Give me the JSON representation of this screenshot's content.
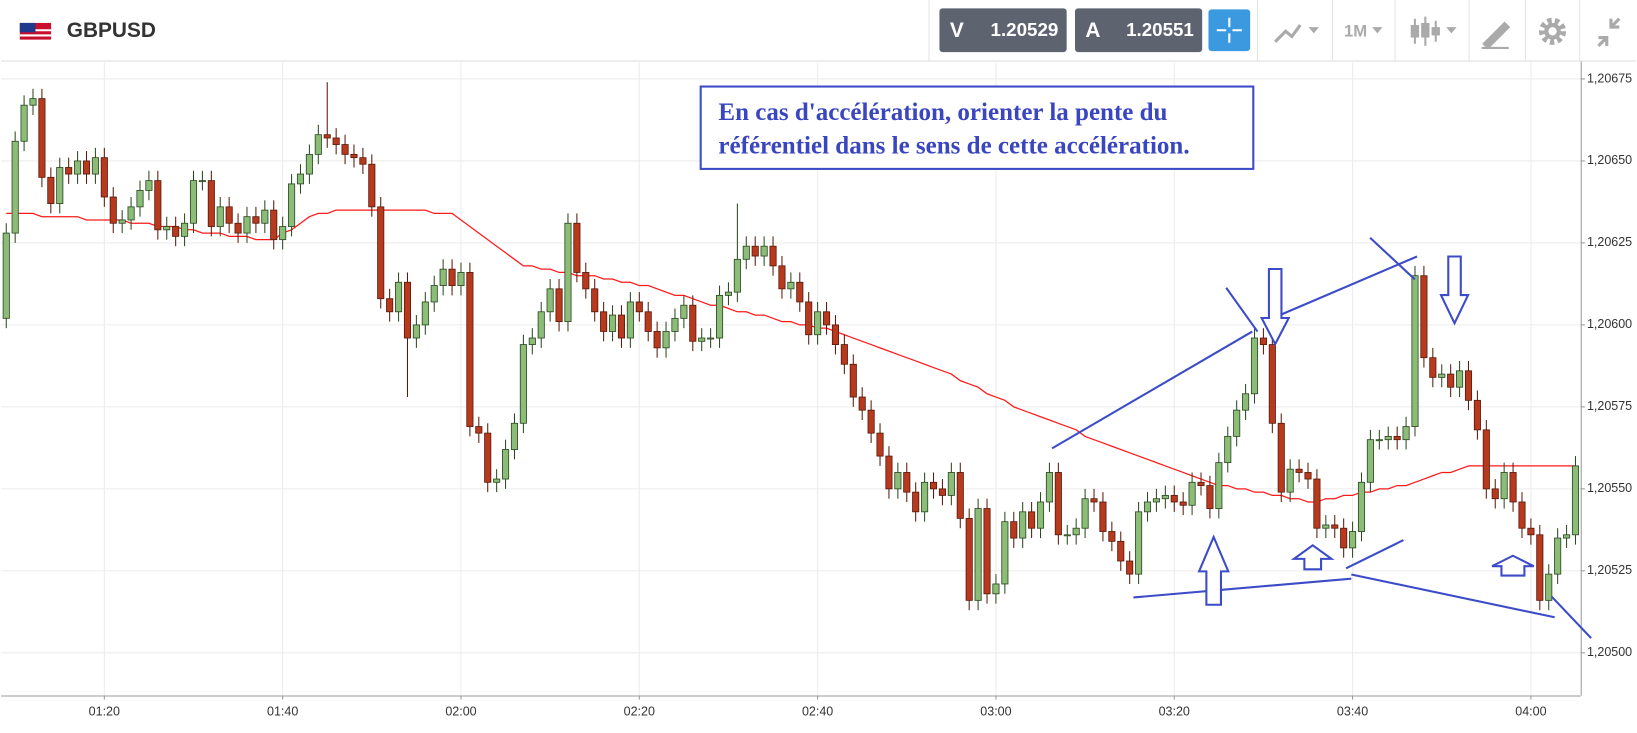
{
  "header": {
    "symbol": "GBPUSD",
    "sell_label": "V",
    "sell_price": "1.20529",
    "buy_label": "A",
    "buy_price": "1.20551",
    "timeframe": "1M"
  },
  "chart_data": {
    "type": "candlestick",
    "annotation": [
      "En cas d'accélération, orienter la pente du",
      "référentiel dans le sens de cette accélération."
    ],
    "categories": [
      null,
      null,
      null,
      null,
      null,
      null,
      null,
      null,
      null,
      null,
      null,
      "01:20",
      null,
      null,
      null,
      null,
      null,
      null,
      null,
      null,
      null,
      null,
      null,
      null,
      null,
      null,
      null,
      null,
      null,
      null,
      null,
      "01:40",
      null,
      null,
      null,
      null,
      null,
      null,
      null,
      null,
      null,
      null,
      null,
      null,
      null,
      null,
      null,
      null,
      null,
      null,
      null,
      "02:00",
      null,
      null,
      null,
      null,
      null,
      null,
      null,
      null,
      null,
      null,
      null,
      null,
      null,
      null,
      null,
      null,
      null,
      null,
      null,
      "02:20",
      null,
      null,
      null,
      null,
      null,
      null,
      null,
      null,
      null,
      null,
      null,
      null,
      null,
      null,
      null,
      null,
      null,
      null,
      null,
      "02:40",
      null,
      null,
      null,
      null,
      null,
      null,
      null,
      null,
      null,
      null,
      null,
      null,
      null,
      null,
      null,
      null,
      null,
      null,
      null,
      "03:00",
      null,
      null,
      null,
      null,
      null,
      null,
      null,
      null,
      null,
      null,
      null,
      null,
      null,
      null,
      null,
      null,
      null,
      null,
      null,
      "03:20",
      null,
      null,
      null,
      null,
      null,
      null,
      null,
      null,
      null,
      null,
      null,
      null,
      null,
      null,
      null,
      null,
      null,
      null,
      null,
      "03:40",
      null,
      null,
      null,
      null,
      null,
      null,
      null,
      null,
      null,
      null,
      null,
      null,
      null,
      null,
      null,
      null,
      null,
      null,
      null,
      "04:00",
      null,
      null,
      null,
      null,
      null
    ],
    "open": [
      1.20602,
      1.20628,
      1.20656,
      1.20667,
      1.20669,
      1.20645,
      1.20637,
      1.20648,
      1.20646,
      1.2065,
      1.20646,
      1.20651,
      1.20639,
      1.20631,
      1.20632,
      1.20636,
      1.20641,
      1.20644,
      1.20629,
      1.2063,
      1.20627,
      1.20631,
      1.20644,
      1.20644,
      1.2063,
      1.20636,
      1.20631,
      1.20628,
      1.20633,
      1.20631,
      1.20635,
      1.20626,
      1.2063,
      1.20643,
      1.20646,
      1.20652,
      1.20658,
      1.20657,
      1.20655,
      1.20652,
      1.20651,
      1.20649,
      1.20636,
      1.20608,
      1.20604,
      1.20613,
      1.20596,
      1.206,
      1.20607,
      1.20612,
      1.20617,
      1.20612,
      1.20616,
      1.20569,
      1.20567,
      1.20552,
      1.20553,
      1.20562,
      1.2057,
      1.20594,
      1.20596,
      1.20604,
      1.20611,
      1.20601,
      1.20631,
      1.20616,
      1.20611,
      1.20604,
      1.20598,
      1.20603,
      1.20596,
      1.20607,
      1.20604,
      1.20598,
      1.20593,
      1.20598,
      1.20602,
      1.20606,
      1.20595,
      1.20596,
      1.20596,
      1.20609,
      1.2061,
      1.2062,
      1.20624,
      1.20621,
      1.20624,
      1.20618,
      1.20611,
      1.20613,
      1.20607,
      1.20597,
      1.20604,
      1.206,
      1.20594,
      1.20588,
      1.20578,
      1.20574,
      1.20567,
      1.2056,
      1.2055,
      1.20555,
      1.20549,
      1.20543,
      1.20552,
      1.2055,
      1.20548,
      1.20555,
      1.20541,
      1.20516,
      1.20544,
      1.20518,
      1.20521,
      1.2054,
      1.20535,
      1.20543,
      1.20538,
      1.20546,
      1.20555,
      1.20536,
      1.20536,
      1.20538,
      1.20547,
      1.20546,
      1.20537,
      1.20534,
      1.20528,
      1.20524,
      1.20543,
      1.20546,
      1.20547,
      1.20548,
      1.20546,
      1.20545,
      1.20552,
      1.20551,
      1.20544,
      1.20558,
      1.20566,
      1.20574,
      1.20579,
      1.20596,
      1.20594,
      1.2057,
      1.20549,
      1.20556,
      1.20555,
      1.20553,
      1.20538,
      1.20539,
      1.20538,
      1.20532,
      1.20537,
      1.20552,
      1.20565,
      1.20565,
      1.20566,
      1.20565,
      1.20569,
      1.20615,
      1.2059,
      1.20584,
      1.20585,
      1.20581,
      1.20586,
      1.20577,
      1.20568,
      1.2055,
      1.20547,
      1.20555,
      1.20546,
      1.20538,
      1.20536,
      1.20516,
      1.20524,
      1.20535,
      1.20536
    ],
    "high": [
      1.20631,
      1.20659,
      1.2067,
      1.20672,
      1.20672,
      1.20648,
      1.20651,
      1.20651,
      1.20653,
      1.20653,
      1.20654,
      1.20654,
      1.20642,
      1.20635,
      1.20639,
      1.20644,
      1.20647,
      1.20647,
      1.20633,
      1.20633,
      1.20634,
      1.20647,
      1.20647,
      1.20647,
      1.20639,
      1.20639,
      1.20634,
      1.20636,
      1.20636,
      1.20638,
      1.20638,
      1.20633,
      1.20646,
      1.20649,
      1.20655,
      1.20661,
      1.20674,
      1.2066,
      1.20658,
      1.20655,
      1.20654,
      1.20652,
      1.20639,
      1.20611,
      1.20616,
      1.20616,
      1.20603,
      1.2061,
      1.20615,
      1.2062,
      1.2062,
      1.20619,
      1.20619,
      1.20572,
      1.2057,
      1.20556,
      1.20565,
      1.20573,
      1.20597,
      1.20599,
      1.20607,
      1.20614,
      1.20614,
      1.20634,
      1.20634,
      1.20619,
      1.20614,
      1.20607,
      1.20606,
      1.20606,
      1.2061,
      1.2061,
      1.20607,
      1.20601,
      1.20601,
      1.20605,
      1.20609,
      1.20609,
      1.20599,
      1.20599,
      1.20612,
      1.20613,
      1.20637,
      1.20627,
      1.20627,
      1.20627,
      1.20627,
      1.20621,
      1.20616,
      1.20616,
      1.2061,
      1.20607,
      1.20607,
      1.20603,
      1.20597,
      1.20591,
      1.20581,
      1.20577,
      1.2057,
      1.20563,
      1.20558,
      1.20558,
      1.20552,
      1.20555,
      1.20555,
      1.20553,
      1.20558,
      1.20558,
      1.20544,
      1.20547,
      1.20547,
      1.20524,
      1.20543,
      1.20543,
      1.20546,
      1.20546,
      1.20549,
      1.20558,
      1.20558,
      1.20539,
      1.20541,
      1.2055,
      1.2055,
      1.20549,
      1.2054,
      1.20537,
      1.20531,
      1.20546,
      1.20549,
      1.2055,
      1.20551,
      1.20551,
      1.20549,
      1.20555,
      1.20555,
      1.20554,
      1.20561,
      1.20569,
      1.20577,
      1.20582,
      1.20599,
      1.20599,
      1.20597,
      1.20573,
      1.20559,
      1.20559,
      1.20558,
      1.20556,
      1.20542,
      1.20542,
      1.20541,
      1.2054,
      1.20555,
      1.20568,
      1.20568,
      1.20569,
      1.20569,
      1.20572,
      1.20618,
      1.20618,
      1.20593,
      1.20588,
      1.20588,
      1.20589,
      1.20589,
      1.2058,
      1.20571,
      1.20553,
      1.20558,
      1.20558,
      1.20549,
      1.20541,
      1.20539,
      1.20527,
      1.20538,
      1.20539,
      1.2056
    ],
    "low": [
      1.20599,
      1.20625,
      1.20653,
      1.20664,
      1.20642,
      1.20634,
      1.20634,
      1.20643,
      1.20643,
      1.20643,
      1.20643,
      1.20636,
      1.20628,
      1.20628,
      1.20629,
      1.20633,
      1.20638,
      1.20626,
      1.20626,
      1.20624,
      1.20624,
      1.20628,
      1.20641,
      1.20627,
      1.20627,
      1.20628,
      1.20625,
      1.20625,
      1.20628,
      1.20628,
      1.20623,
      1.20623,
      1.20627,
      1.2064,
      1.20643,
      1.20649,
      1.20654,
      1.20652,
      1.20649,
      1.20648,
      1.20646,
      1.20633,
      1.20605,
      1.20601,
      1.20601,
      1.20578,
      1.20593,
      1.20597,
      1.20604,
      1.20609,
      1.20609,
      1.20609,
      1.20566,
      1.20564,
      1.20549,
      1.20549,
      1.2055,
      1.20559,
      1.20567,
      1.20591,
      1.20593,
      1.20601,
      1.20598,
      1.20598,
      1.20613,
      1.20608,
      1.20601,
      1.20595,
      1.20595,
      1.20593,
      1.20593,
      1.20601,
      1.20595,
      1.2059,
      1.2059,
      1.20595,
      1.20599,
      1.20592,
      1.20592,
      1.20593,
      1.20593,
      1.20606,
      1.20607,
      1.20617,
      1.20618,
      1.20618,
      1.20615,
      1.20608,
      1.20608,
      1.20604,
      1.20594,
      1.20594,
      1.20597,
      1.20591,
      1.20585,
      1.20575,
      1.20571,
      1.20564,
      1.20557,
      1.20547,
      1.20547,
      1.20546,
      1.2054,
      1.2054,
      1.20547,
      1.20545,
      1.20545,
      1.20538,
      1.20513,
      1.20513,
      1.20515,
      1.20515,
      1.20518,
      1.20532,
      1.20532,
      1.20535,
      1.20535,
      1.20543,
      1.20533,
      1.20533,
      1.20533,
      1.20535,
      1.20543,
      1.20534,
      1.20531,
      1.20525,
      1.20521,
      1.20521,
      1.2054,
      1.20543,
      1.20544,
      1.20543,
      1.20542,
      1.20542,
      1.20548,
      1.20541,
      1.20541,
      1.20555,
      1.20563,
      1.20571,
      1.20576,
      1.20591,
      1.20567,
      1.20546,
      1.20546,
      1.20552,
      1.2055,
      1.20535,
      1.20535,
      1.20535,
      1.20529,
      1.20529,
      1.20534,
      1.20549,
      1.20562,
      1.20562,
      1.20562,
      1.20562,
      1.20566,
      1.20587,
      1.20581,
      1.20581,
      1.20578,
      1.20578,
      1.20574,
      1.20565,
      1.20547,
      1.20544,
      1.20544,
      1.20543,
      1.20535,
      1.20533,
      1.20513,
      1.20513,
      1.20521,
      1.20532,
      1.20533
    ],
    "close": [
      1.20628,
      1.20656,
      1.20667,
      1.20669,
      1.20645,
      1.20637,
      1.20648,
      1.20646,
      1.2065,
      1.20646,
      1.20651,
      1.20639,
      1.20631,
      1.20632,
      1.20636,
      1.20641,
      1.20644,
      1.20629,
      1.2063,
      1.20627,
      1.20631,
      1.20644,
      1.20644,
      1.2063,
      1.20636,
      1.20631,
      1.20628,
      1.20633,
      1.20631,
      1.20635,
      1.20626,
      1.2063,
      1.20643,
      1.20646,
      1.20652,
      1.20658,
      1.20657,
      1.20655,
      1.20652,
      1.20651,
      1.20649,
      1.20636,
      1.20608,
      1.20604,
      1.20613,
      1.20596,
      1.206,
      1.20607,
      1.20612,
      1.20617,
      1.20612,
      1.20616,
      1.20569,
      1.20567,
      1.20552,
      1.20553,
      1.20562,
      1.2057,
      1.20594,
      1.20596,
      1.20604,
      1.20611,
      1.20601,
      1.20631,
      1.20616,
      1.20611,
      1.20604,
      1.20598,
      1.20603,
      1.20596,
      1.20607,
      1.20604,
      1.20598,
      1.20593,
      1.20598,
      1.20602,
      1.20606,
      1.20595,
      1.20596,
      1.20596,
      1.20609,
      1.2061,
      1.2062,
      1.20624,
      1.20621,
      1.20624,
      1.20618,
      1.20611,
      1.20613,
      1.20607,
      1.20597,
      1.20604,
      1.206,
      1.20594,
      1.20588,
      1.20578,
      1.20574,
      1.20567,
      1.2056,
      1.2055,
      1.20555,
      1.20549,
      1.20543,
      1.20552,
      1.2055,
      1.20548,
      1.20555,
      1.20541,
      1.20516,
      1.20544,
      1.20518,
      1.20521,
      1.2054,
      1.20535,
      1.20543,
      1.20538,
      1.20546,
      1.20555,
      1.20536,
      1.20536,
      1.20538,
      1.20547,
      1.20546,
      1.20537,
      1.20534,
      1.20528,
      1.20524,
      1.20543,
      1.20546,
      1.20547,
      1.20548,
      1.20546,
      1.20545,
      1.20552,
      1.20551,
      1.20544,
      1.20558,
      1.20566,
      1.20574,
      1.20579,
      1.20596,
      1.20594,
      1.2057,
      1.20549,
      1.20556,
      1.20555,
      1.20553,
      1.20538,
      1.20539,
      1.20538,
      1.20532,
      1.20537,
      1.20552,
      1.20565,
      1.20565,
      1.20566,
      1.20565,
      1.20569,
      1.20615,
      1.2059,
      1.20584,
      1.20585,
      1.20581,
      1.20586,
      1.20577,
      1.20568,
      1.2055,
      1.20547,
      1.20555,
      1.20546,
      1.20538,
      1.20536,
      1.20516,
      1.20524,
      1.20535,
      1.20536,
      1.20557
    ],
    "moving_average": {
      "color": "#ff1a1a",
      "values": [
        1.20634,
        1.20634,
        1.20634,
        1.20634,
        1.20633,
        1.20633,
        1.20633,
        1.20633,
        1.20633,
        1.20632,
        1.20632,
        1.20632,
        1.20632,
        1.20632,
        1.20631,
        1.20631,
        1.20631,
        1.2063,
        1.2063,
        1.2063,
        1.20629,
        1.20629,
        1.20628,
        1.20628,
        1.20628,
        1.20627,
        1.20627,
        1.20627,
        1.20626,
        1.20626,
        1.20626,
        1.20628,
        1.20629,
        1.20631,
        1.20633,
        1.20634,
        1.20634,
        1.20635,
        1.20635,
        1.20635,
        1.20635,
        1.20635,
        1.20635,
        1.20635,
        1.20635,
        1.20635,
        1.20635,
        1.20635,
        1.20634,
        1.20634,
        1.20634,
        1.20632,
        1.2063,
        1.20628,
        1.20626,
        1.20624,
        1.20622,
        1.2062,
        1.20618,
        1.20618,
        1.20617,
        1.20617,
        1.20616,
        1.20616,
        1.20615,
        1.20615,
        1.20615,
        1.20614,
        1.20614,
        1.20613,
        1.20613,
        1.20612,
        1.20612,
        1.20611,
        1.2061,
        1.20609,
        1.20609,
        1.20608,
        1.20607,
        1.20606,
        1.20606,
        1.20605,
        1.20604,
        1.20604,
        1.20603,
        1.20603,
        1.20602,
        1.20601,
        1.20601,
        1.206,
        1.206,
        1.20599,
        1.20599,
        1.20598,
        1.20597,
        1.20596,
        1.20595,
        1.20594,
        1.20593,
        1.20592,
        1.20591,
        1.2059,
        1.20589,
        1.20588,
        1.20587,
        1.20586,
        1.20585,
        1.20583,
        1.20582,
        1.20581,
        1.20579,
        1.20578,
        1.20577,
        1.20575,
        1.20574,
        1.20573,
        1.20572,
        1.20571,
        1.2057,
        1.20569,
        1.20568,
        1.20566,
        1.20565,
        1.20564,
        1.20563,
        1.20562,
        1.20561,
        1.2056,
        1.20559,
        1.20558,
        1.20557,
        1.20556,
        1.20555,
        1.20554,
        1.20553,
        1.20552,
        1.20551,
        1.20551,
        1.2055,
        1.2055,
        1.20549,
        1.20549,
        1.20548,
        1.20548,
        1.20547,
        1.20547,
        1.20546,
        1.20546,
        1.20547,
        1.20547,
        1.20548,
        1.20548,
        1.20549,
        1.20549,
        1.2055,
        1.2055,
        1.20551,
        1.20551,
        1.20552,
        1.20553,
        1.20554,
        1.20555,
        1.20555,
        1.20556,
        1.20557,
        1.20557,
        1.20557,
        1.20557,
        1.20557,
        1.20557,
        1.20557,
        1.20557,
        1.20557,
        1.20557,
        1.20557,
        1.20557,
        1.20557
      ]
    },
    "up_color": "#8cbd78",
    "down_color": "#b83a1e",
    "ylim": [
      1.20487,
      1.2068
    ],
    "yticks": [
      {
        "value": 1.205,
        "label": "1,20500"
      },
      {
        "value": 1.20525,
        "label": "1,20525"
      },
      {
        "value": 1.2055,
        "label": "1,20550"
      },
      {
        "value": 1.20575,
        "label": "1,20575"
      },
      {
        "value": 1.206,
        "label": "1,20600"
      },
      {
        "value": 1.20625,
        "label": "1,20625"
      },
      {
        "value": 1.2065,
        "label": "1,20650"
      },
      {
        "value": 1.20675,
        "label": "1,20675"
      }
    ],
    "grid": true
  }
}
